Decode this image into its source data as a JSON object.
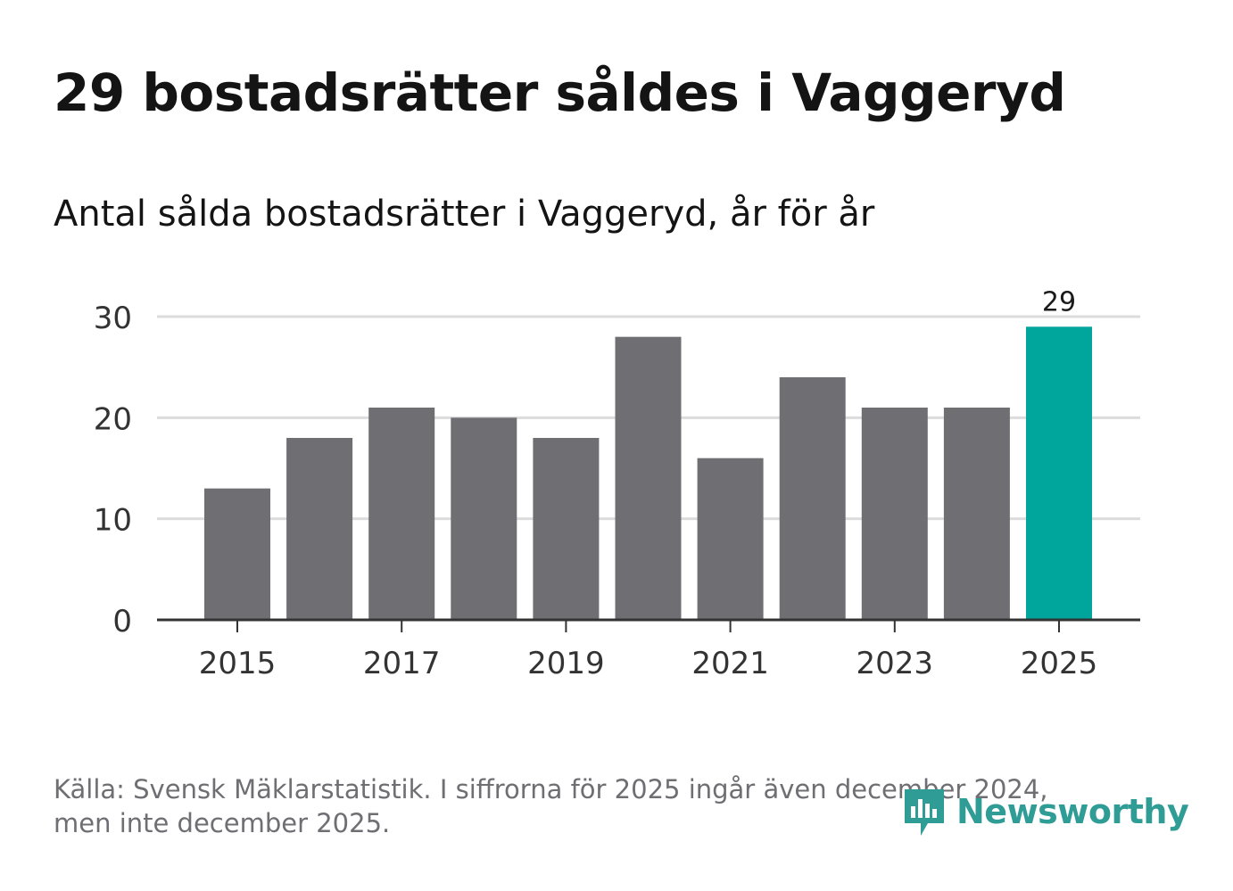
{
  "title": "29 bostadsrätter såldes i Vaggeryd",
  "subtitle": "Antal sålda bostadsrätter i Vaggeryd, år för år",
  "footer": {
    "source_line1": "Källa: Svensk Mäklarstatistik. I siffrorna för 2025 ingår även december 2024,",
    "source_line2": "men inte december 2025."
  },
  "brand": {
    "name": "Newsworthy",
    "color": "#2f9c95"
  },
  "colors": {
    "bar_default": "#6f6e73",
    "bar_highlight": "#00a59b",
    "grid": "#dcdcdc",
    "axis": "#333333",
    "tick_text": "#333333"
  },
  "chart_data": {
    "type": "bar",
    "title": "29 bostadsrätter såldes i Vaggeryd",
    "subtitle": "Antal sålda bostadsrätter i Vaggeryd, år för år",
    "xlabel": "",
    "ylabel": "",
    "categories": [
      "2015",
      "2016",
      "2017",
      "2018",
      "2019",
      "2020",
      "2021",
      "2022",
      "2023",
      "2024",
      "2025"
    ],
    "values": [
      13,
      18,
      21,
      20,
      18,
      28,
      16,
      24,
      21,
      21,
      29
    ],
    "highlight_category": "2025",
    "data_labels": [
      {
        "category": "2025",
        "text": "29"
      }
    ],
    "ylim": [
      0,
      30
    ],
    "yticks": [
      0,
      10,
      20,
      30
    ],
    "xtick_labels": [
      "2015",
      "2017",
      "2019",
      "2021",
      "2023",
      "2025"
    ],
    "grid": true,
    "legend": "none"
  }
}
